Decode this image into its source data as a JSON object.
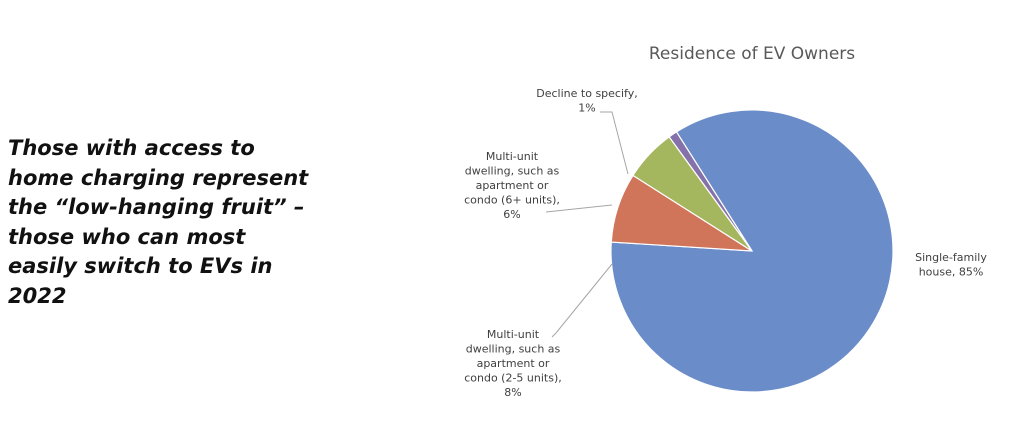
{
  "slide": {
    "text_lines": [
      "Those with access to",
      "home charging represent",
      "the “low-hanging fruit” –",
      "those who can most",
      "easily switch to EVs in",
      "2022"
    ]
  },
  "chart_data": {
    "type": "pie",
    "title": "Residence of EV Owners",
    "legend": "none",
    "slices": [
      {
        "name": "Single-family house",
        "value": 85,
        "color": "#6a8cc8",
        "label_lines": [
          "Single-family",
          "house, 85%"
        ]
      },
      {
        "name": "Multi-unit dwelling, such as apartment or condo (2-5 units)",
        "value": 8,
        "color": "#d0745a",
        "label_lines": [
          "Multi-unit",
          "dwelling, such as",
          "apartment or",
          "condo (2-5 units),",
          "8%"
        ]
      },
      {
        "name": "Multi-unit dwelling, such as apartment or condo (6+ units)",
        "value": 6,
        "color": "#a4b65e",
        "label_lines": [
          "Multi-unit",
          "dwelling, such as",
          "apartment or",
          "condo (6+ units),",
          "6%"
        ]
      },
      {
        "name": "Decline to specify",
        "value": 1,
        "color": "#8672aa",
        "label_lines": [
          "Decline to specify,",
          "1%"
        ]
      }
    ]
  }
}
